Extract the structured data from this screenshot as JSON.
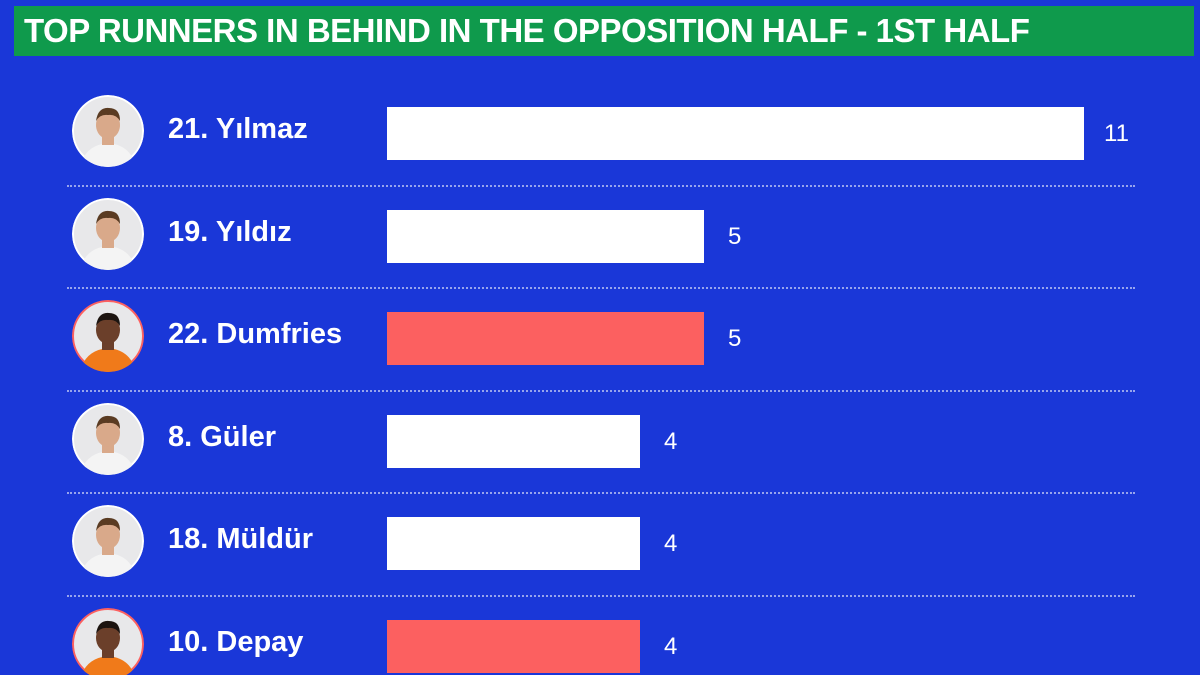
{
  "title": "TOP RUNNERS IN BEHIND IN THE OPPOSITION HALF - 1ST HALF",
  "colors": {
    "background": "#1a37d8",
    "title_bar": "#0f9a4c",
    "turkey_bar": "#ffffff",
    "netherlands_bar": "#fc6060"
  },
  "chart_data": {
    "type": "bar",
    "orientation": "horizontal",
    "title": "TOP RUNNERS IN BEHIND IN THE OPPOSITION HALF - 1ST HALF",
    "xlim": [
      0,
      11
    ],
    "grid": false,
    "categories": [
      "21. Yılmaz",
      "19. Yıldız",
      "22. Dumfries",
      "8. Güler",
      "18. Müldür",
      "10. Depay"
    ],
    "values": [
      11,
      5,
      5,
      4,
      4,
      4
    ],
    "value_labels": [
      "11",
      "5",
      "5",
      "4",
      "4",
      "4"
    ],
    "bar_colors": [
      "#ffffff",
      "#ffffff",
      "#fc6060",
      "#ffffff",
      "#ffffff",
      "#fc6060"
    ],
    "avatar_shirts": [
      "white",
      "white",
      "orange",
      "white",
      "white",
      "orange"
    ]
  }
}
